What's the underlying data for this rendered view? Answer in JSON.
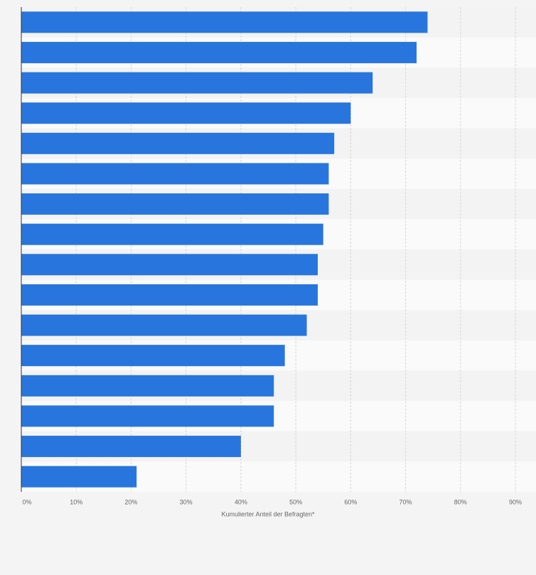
{
  "chart_data": {
    "type": "hbar",
    "x_label": "Kumulierter Anteil der Befragten*",
    "categories": [
      null,
      null,
      null,
      null,
      null,
      null,
      null,
      null,
      null,
      null,
      null,
      null,
      null,
      null,
      null,
      null
    ],
    "values": [
      74,
      72,
      64,
      60,
      57,
      56,
      56,
      55,
      54,
      54,
      52,
      48,
      46,
      46,
      40,
      21
    ],
    "color": "#2876dd",
    "xlim": [
      0,
      90
    ],
    "xticks": [
      {
        "value": 0,
        "label": "0%"
      },
      {
        "value": 10,
        "label": "10%"
      },
      {
        "value": 20,
        "label": "20%"
      },
      {
        "value": 30,
        "label": "30%"
      },
      {
        "value": 40,
        "label": "40%"
      },
      {
        "value": 50,
        "label": "50%"
      },
      {
        "value": 60,
        "label": "60%"
      },
      {
        "value": 70,
        "label": "70%"
      },
      {
        "value": 80,
        "label": "80%"
      },
      {
        "value": 90,
        "label": "90%"
      }
    ],
    "grid": true
  }
}
